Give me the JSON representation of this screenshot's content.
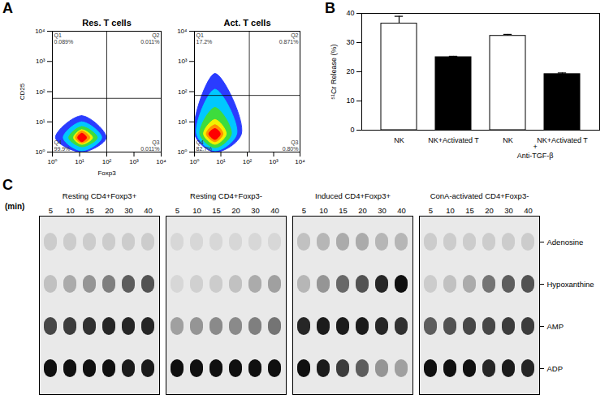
{
  "chart_data": [
    {
      "panel": "A",
      "type": "density",
      "title": "Res. T cells",
      "xlabel": "Foxp3",
      "ylabel": "CD25",
      "log": true,
      "xlim": [
        1,
        10000
      ],
      "ylim": [
        1,
        10000
      ],
      "xticks": [
        {
          "value": 1,
          "label": "10⁰"
        },
        {
          "value": 10,
          "label": "10¹"
        },
        {
          "value": 100,
          "label": "10²"
        },
        {
          "value": 1000,
          "label": "10³"
        },
        {
          "value": 10000,
          "label": "10⁴"
        }
      ],
      "yticks": [
        {
          "value": 1,
          "label": "10⁰"
        },
        {
          "value": 10,
          "label": "10¹"
        },
        {
          "value": 100,
          "label": "10²"
        },
        {
          "value": 1000,
          "label": "10³"
        },
        {
          "value": 10000,
          "label": "10⁴"
        }
      ],
      "gates": {
        "x": 100,
        "y": 60
      },
      "quadrants": [
        {
          "name": "Q1",
          "text": "0.089%"
        },
        {
          "name": "Q2",
          "text": "0.011%"
        },
        {
          "name": "Q3",
          "text": "0.011%"
        },
        {
          "name": "Q4",
          "text": "99.9%"
        }
      ],
      "contours": [
        {
          "color": "#2a3cff",
          "x": [
            1.3,
            95
          ],
          "y": [
            1,
            16
          ],
          "center": [
            12,
            3
          ]
        },
        {
          "color": "#00c8ff",
          "x": [
            2.5,
            65
          ],
          "y": [
            1.1,
            10
          ],
          "center": [
            12,
            3
          ]
        },
        {
          "color": "#3ddc3d",
          "x": [
            4,
            45
          ],
          "y": [
            1.5,
            7
          ],
          "center": [
            12,
            3
          ]
        },
        {
          "color": "#f2f200",
          "x": [
            6,
            30
          ],
          "y": [
            1.8,
            5.5
          ],
          "center": [
            12,
            3
          ]
        },
        {
          "color": "#ff9000",
          "x": [
            7,
            24
          ],
          "y": [
            2,
            5
          ],
          "center": [
            12,
            3
          ]
        },
        {
          "color": "#ff0000",
          "x": [
            8.5,
            18
          ],
          "y": [
            2.2,
            4.2
          ],
          "center": [
            12,
            3
          ]
        }
      ]
    },
    {
      "panel": "A",
      "type": "density",
      "title": "Act. T cells",
      "log": true,
      "xlim": [
        1,
        10000
      ],
      "ylim": [
        1,
        10000
      ],
      "xticks": [
        {
          "value": 1,
          "label": "10⁰"
        },
        {
          "value": 10,
          "label": "10¹"
        },
        {
          "value": 100,
          "label": "10²"
        },
        {
          "value": 1000,
          "label": "10³"
        },
        {
          "value": 10000,
          "label": "10⁴"
        }
      ],
      "yticks": [
        {
          "value": 1,
          "label": "10⁰"
        },
        {
          "value": 10,
          "label": "10¹"
        },
        {
          "value": 100,
          "label": "10²"
        },
        {
          "value": 1000,
          "label": "10³"
        },
        {
          "value": 10000,
          "label": "10⁴"
        }
      ],
      "gates": {
        "x": 120,
        "y": 75
      },
      "quadrants": [
        {
          "name": "Q1",
          "text": "17.2%"
        },
        {
          "name": "Q2",
          "text": "0.871%"
        },
        {
          "name": "Q3",
          "text": "0.80%"
        },
        {
          "name": "Q4",
          "text": "82.7%"
        }
      ],
      "contours": [
        {
          "color": "#2a3cff",
          "x": [
            1,
            60
          ],
          "y": [
            1,
            400
          ],
          "center": [
            6,
            4
          ]
        },
        {
          "color": "#00c8ff",
          "x": [
            1.2,
            40
          ],
          "y": [
            1.1,
            120
          ],
          "center": [
            6,
            4
          ]
        },
        {
          "color": "#3ddc3d",
          "x": [
            1.6,
            25
          ],
          "y": [
            1.4,
            30
          ],
          "center": [
            6,
            4
          ]
        },
        {
          "color": "#f2f200",
          "x": [
            2.2,
            16
          ],
          "y": [
            1.8,
            12
          ],
          "center": [
            6,
            4
          ]
        },
        {
          "color": "#ff9000",
          "x": [
            2.8,
            12
          ],
          "y": [
            2.2,
            8
          ],
          "center": [
            6,
            4
          ]
        },
        {
          "color": "#ff0000",
          "x": [
            3.5,
            9.5
          ],
          "y": [
            2.6,
            6
          ],
          "center": [
            6,
            4
          ]
        }
      ]
    },
    {
      "panel": "B",
      "type": "bar",
      "ylabel": "⁵¹Cr Release (%)",
      "categories": [
        "NK",
        "NK+Activated T",
        "NK",
        "NK+Activated T"
      ],
      "values": [
        36.5,
        25,
        32.3,
        19.2
      ],
      "errors": [
        2.5,
        0.3,
        0.5,
        0.4
      ],
      "colors": [
        "white",
        "black",
        "white",
        "black"
      ],
      "group_label": [
        "+",
        "Anti-TGF-β"
      ],
      "ylim": [
        0,
        40
      ],
      "yticks": [
        0,
        10,
        20,
        30,
        40
      ]
    },
    {
      "panel": "C",
      "type": "heatmap",
      "x_label": "(min)",
      "x": [
        5,
        10,
        15,
        20,
        30,
        40
      ],
      "bands": [
        "Adenosine",
        "Hypoxanthine",
        "AMP",
        "ADP"
      ],
      "intensity_lim": [
        0,
        1
      ],
      "groups": [
        {
          "name": "Resting CD4+Foxp3+",
          "values": [
            [
              0.1,
              0.1,
              0.1,
              0.1,
              0.1,
              0.1
            ],
            [
              0.15,
              0.25,
              0.35,
              0.45,
              0.6,
              0.65
            ],
            [
              0.7,
              0.75,
              0.8,
              0.85,
              0.85,
              0.85
            ],
            [
              0.95,
              0.95,
              0.95,
              0.95,
              0.9,
              0.9
            ]
          ]
        },
        {
          "name": "Resting CD4+Foxp3-",
          "values": [
            [
              0.05,
              0.05,
              0.05,
              0.05,
              0.05,
              0.05
            ],
            [
              0.05,
              0.08,
              0.1,
              0.15,
              0.25,
              0.3
            ],
            [
              0.3,
              0.35,
              0.4,
              0.4,
              0.45,
              0.5
            ],
            [
              0.95,
              0.95,
              0.95,
              0.95,
              0.95,
              0.95
            ]
          ]
        },
        {
          "name": "Induced CD4+Foxp3+",
          "values": [
            [
              0.15,
              0.2,
              0.25,
              0.25,
              0.2,
              0.2
            ],
            [
              0.2,
              0.35,
              0.55,
              0.65,
              0.85,
              0.95
            ],
            [
              0.85,
              0.9,
              0.9,
              0.9,
              0.85,
              0.8
            ],
            [
              0.95,
              0.9,
              0.75,
              0.6,
              0.35,
              0.3
            ]
          ]
        },
        {
          "name": "ConA-activated CD4+Foxp3-",
          "values": [
            [
              0.1,
              0.1,
              0.1,
              0.1,
              0.1,
              0.1
            ],
            [
              0.1,
              0.15,
              0.25,
              0.5,
              0.6,
              0.65
            ],
            [
              0.6,
              0.65,
              0.7,
              0.7,
              0.75,
              0.75
            ],
            [
              0.95,
              0.95,
              0.95,
              0.85,
              0.9,
              0.85
            ]
          ]
        }
      ]
    }
  ]
}
